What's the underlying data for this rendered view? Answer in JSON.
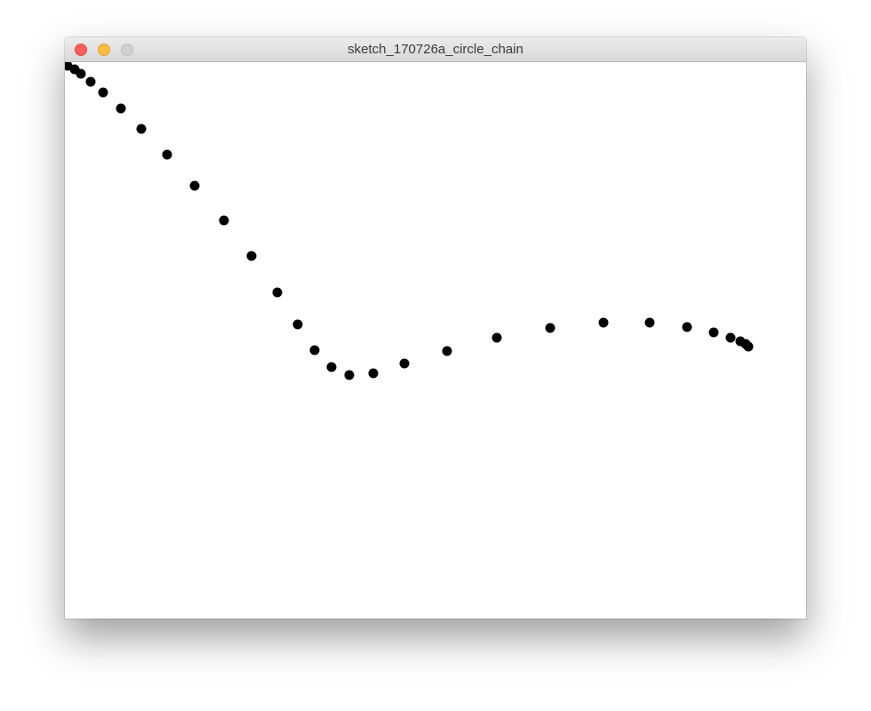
{
  "window": {
    "title": "sketch_170726a_circle_chain",
    "controls": {
      "close_color": "#fc605c",
      "minimize_color": "#fdbc40",
      "zoom_color": "#d0d0d0"
    }
  },
  "sketch": {
    "background": "#ffffff",
    "dot_color": "#000000"
  }
}
